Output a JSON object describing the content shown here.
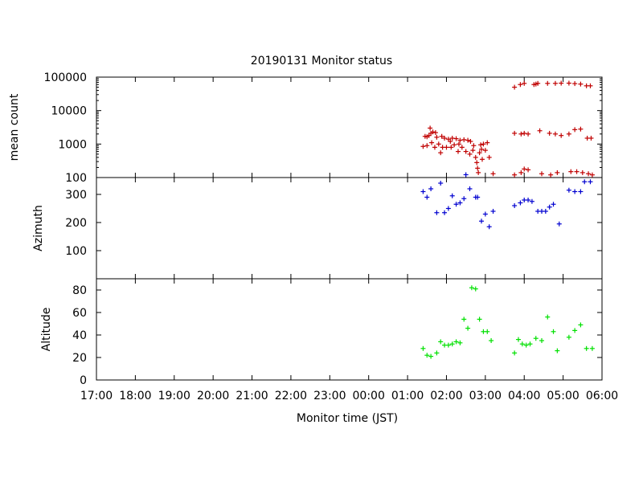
{
  "chart_data": [
    {
      "type": "scatter",
      "title": "20190131 Monitor status",
      "ylabel": "mean count",
      "yscale": "log",
      "ylim": [
        100,
        100000
      ],
      "yticks": [
        100,
        1000,
        10000,
        100000
      ],
      "ytick_labels": [
        "100",
        "1000",
        "10000",
        "100000"
      ],
      "series": [
        {
          "color": "#c00000",
          "marker": "plus",
          "points": [
            [
              1.4,
              850
            ],
            [
              1.45,
              1700
            ],
            [
              1.5,
              1650
            ],
            [
              1.5,
              900
            ],
            [
              1.55,
              1800
            ],
            [
              1.58,
              3000
            ],
            [
              1.6,
              2100
            ],
            [
              1.62,
              1100
            ],
            [
              1.65,
              2300
            ],
            [
              1.7,
              800
            ],
            [
              1.72,
              2200
            ],
            [
              1.75,
              1600
            ],
            [
              1.8,
              1000
            ],
            [
              1.85,
              550
            ],
            [
              1.88,
              1700
            ],
            [
              1.9,
              800
            ],
            [
              1.95,
              1500
            ],
            [
              2.0,
              800
            ],
            [
              2.05,
              1400
            ],
            [
              2.1,
              1200
            ],
            [
              2.12,
              800
            ],
            [
              2.15,
              1500
            ],
            [
              2.2,
              950
            ],
            [
              2.25,
              1450
            ],
            [
              2.3,
              600
            ],
            [
              2.32,
              1000
            ],
            [
              2.35,
              1300
            ],
            [
              2.4,
              800
            ],
            [
              2.45,
              1350
            ],
            [
              2.5,
              600
            ],
            [
              2.55,
              1300
            ],
            [
              2.6,
              500
            ],
            [
              2.62,
              1200
            ],
            [
              2.68,
              650
            ],
            [
              2.7,
              900
            ],
            [
              2.75,
              400
            ],
            [
              2.78,
              280
            ],
            [
              2.8,
              190
            ],
            [
              2.82,
              140
            ],
            [
              2.85,
              550
            ],
            [
              2.88,
              950
            ],
            [
              2.9,
              700
            ],
            [
              2.92,
              350
            ],
            [
              2.95,
              1000
            ],
            [
              3.0,
              650
            ],
            [
              3.05,
              1100
            ],
            [
              3.1,
              400
            ],
            [
              3.2,
              130
            ],
            [
              3.75,
              50000
            ],
            [
              3.75,
              2100
            ],
            [
              3.75,
              120
            ],
            [
              3.9,
              60000
            ],
            [
              3.92,
              2000
            ],
            [
              3.92,
              140
            ],
            [
              4.0,
              65000
            ],
            [
              4.0,
              2100
            ],
            [
              4.0,
              180
            ],
            [
              4.1,
              2000
            ],
            [
              4.1,
              170
            ],
            [
              4.25,
              60000
            ],
            [
              4.3,
              62000
            ],
            [
              4.35,
              65000
            ],
            [
              4.4,
              2500
            ],
            [
              4.45,
              130
            ],
            [
              4.6,
              65000
            ],
            [
              4.65,
              2100
            ],
            [
              4.68,
              120
            ],
            [
              4.8,
              65000
            ],
            [
              4.8,
              2000
            ],
            [
              4.85,
              140
            ],
            [
              4.95,
              66000
            ],
            [
              4.95,
              1800
            ],
            [
              5.15,
              66000
            ],
            [
              5.15,
              2000
            ],
            [
              5.2,
              150
            ],
            [
              5.3,
              64000
            ],
            [
              5.3,
              2700
            ],
            [
              5.35,
              150
            ],
            [
              5.45,
              62000
            ],
            [
              5.45,
              2800
            ],
            [
              5.5,
              140
            ],
            [
              5.6,
              55000
            ],
            [
              5.62,
              1500
            ],
            [
              5.65,
              130
            ],
            [
              5.7,
              55000
            ],
            [
              5.72,
              1500
            ],
            [
              5.75,
              120
            ]
          ]
        }
      ]
    },
    {
      "type": "scatter",
      "ylabel": "Azimuth",
      "ylim": [
        0,
        360
      ],
      "yticks": [
        0,
        100,
        200,
        300
      ],
      "ytick_labels": [
        "0",
        "100",
        "200",
        "300"
      ],
      "series": [
        {
          "color": "#0000d0",
          "marker": "plus",
          "points": [
            [
              1.4,
              310
            ],
            [
              1.5,
              290
            ],
            [
              1.6,
              320
            ],
            [
              1.75,
              235
            ],
            [
              1.85,
              340
            ],
            [
              1.95,
              235
            ],
            [
              2.05,
              250
            ],
            [
              2.15,
              295
            ],
            [
              2.25,
              265
            ],
            [
              2.35,
              270
            ],
            [
              2.45,
              285
            ],
            [
              2.5,
              370
            ],
            [
              2.6,
              320
            ],
            [
              2.75,
              290
            ],
            [
              2.8,
              290
            ],
            [
              2.9,
              205
            ],
            [
              3.0,
              230
            ],
            [
              3.1,
              185
            ],
            [
              3.2,
              240
            ],
            [
              3.75,
              260
            ],
            [
              3.9,
              270
            ],
            [
              4.0,
              280
            ],
            [
              4.1,
              280
            ],
            [
              4.2,
              275
            ],
            [
              4.35,
              240
            ],
            [
              4.45,
              240
            ],
            [
              4.55,
              240
            ],
            [
              4.65,
              255
            ],
            [
              4.75,
              265
            ],
            [
              4.9,
              195
            ],
            [
              5.15,
              315
            ],
            [
              5.3,
              310
            ],
            [
              5.45,
              310
            ],
            [
              5.55,
              345
            ],
            [
              5.7,
              345
            ]
          ]
        }
      ]
    },
    {
      "type": "scatter",
      "ylabel": "Altitude",
      "ylim": [
        0,
        90
      ],
      "yticks": [
        0,
        20,
        40,
        60,
        80
      ],
      "ytick_labels": [
        "0",
        "20",
        "40",
        "60",
        "80"
      ],
      "xlabel": "Monitor time (JST)",
      "xlim": [
        "17:00",
        "06:00"
      ],
      "xtick_labels": [
        "17:00",
        "18:00",
        "19:00",
        "20:00",
        "21:00",
        "22:00",
        "23:00",
        "00:00",
        "01:00",
        "02:00",
        "03:00",
        "04:00",
        "05:00",
        "06:00"
      ],
      "series": [
        {
          "color": "#00e000",
          "marker": "plus",
          "points": [
            [
              1.4,
              28
            ],
            [
              1.5,
              22
            ],
            [
              1.6,
              21
            ],
            [
              1.75,
              24
            ],
            [
              1.85,
              34
            ],
            [
              1.95,
              31
            ],
            [
              2.05,
              31
            ],
            [
              2.15,
              32
            ],
            [
              2.25,
              34
            ],
            [
              2.35,
              33
            ],
            [
              2.45,
              54
            ],
            [
              2.55,
              46
            ],
            [
              2.65,
              82
            ],
            [
              2.75,
              81
            ],
            [
              2.85,
              54
            ],
            [
              2.95,
              43
            ],
            [
              3.05,
              43
            ],
            [
              3.15,
              35
            ],
            [
              3.75,
              24
            ],
            [
              3.85,
              36
            ],
            [
              3.95,
              32
            ],
            [
              4.05,
              31
            ],
            [
              4.15,
              32
            ],
            [
              4.3,
              37
            ],
            [
              4.45,
              35
            ],
            [
              4.6,
              56
            ],
            [
              4.75,
              43
            ],
            [
              4.85,
              26
            ],
            [
              5.15,
              38
            ],
            [
              5.3,
              44
            ],
            [
              5.45,
              49
            ],
            [
              5.6,
              28
            ],
            [
              5.75,
              28
            ]
          ]
        }
      ]
    }
  ]
}
